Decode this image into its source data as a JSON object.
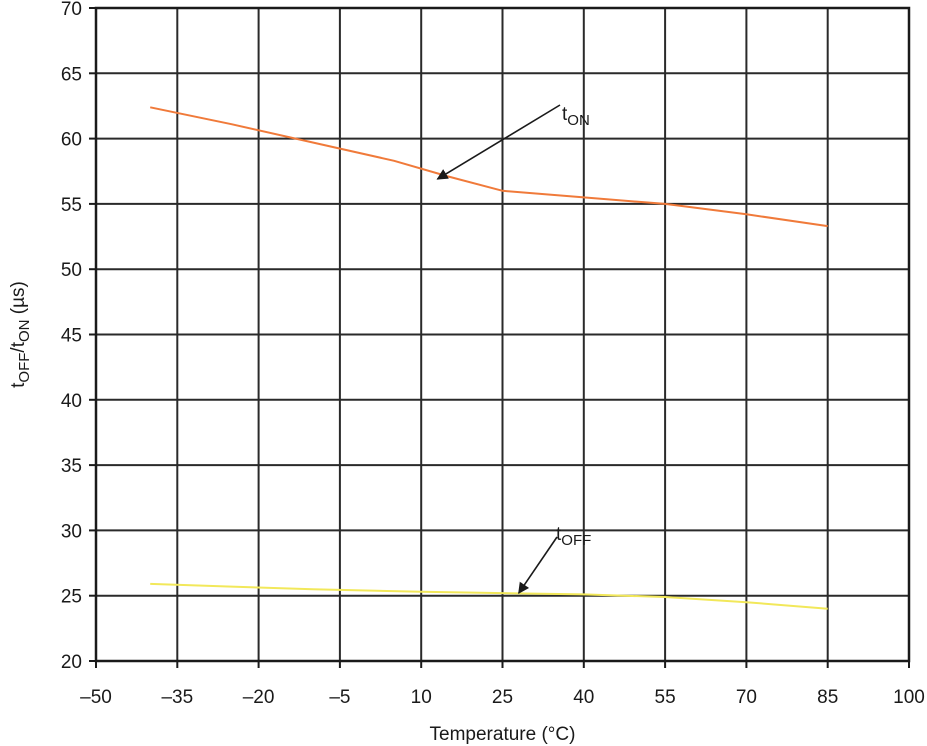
{
  "chart_data": {
    "type": "line",
    "title": "",
    "xlabel": "Temperature (°C)",
    "ylabel": {
      "main": "t",
      "sub1": "OFF",
      "mid": "/t",
      "sub2": "ON",
      "unit": " (µs)"
    },
    "xlim": [
      -50,
      100
    ],
    "ylim": [
      20,
      70
    ],
    "x_ticks": [
      -50,
      -35,
      -20,
      -5,
      10,
      25,
      40,
      55,
      70,
      85,
      100
    ],
    "x_tick_labels": [
      "–50",
      "–35",
      "–20",
      "–5",
      "10",
      "25",
      "40",
      "55",
      "70",
      "85",
      "100"
    ],
    "y_ticks": [
      20,
      25,
      30,
      35,
      40,
      45,
      50,
      55,
      60,
      65,
      70
    ],
    "y_tick_labels": [
      "20",
      "25",
      "30",
      "35",
      "40",
      "45",
      "50",
      "55",
      "60",
      "65",
      "70"
    ],
    "grid": true,
    "series": [
      {
        "name": "tON",
        "color": "#f07a3a",
        "x": [
          -40,
          -25,
          -10,
          5,
          15,
          25,
          40,
          55,
          70,
          85
        ],
        "y": [
          62.4,
          61.1,
          59.7,
          58.3,
          57.1,
          56.0,
          55.5,
          55.0,
          54.2,
          53.3
        ]
      },
      {
        "name": "tOFF",
        "color": "#f2e85a",
        "x": [
          -40,
          -25,
          -10,
          10,
          25,
          40,
          55,
          70,
          85
        ],
        "y": [
          25.9,
          25.7,
          25.5,
          25.3,
          25.2,
          25.1,
          24.9,
          24.5,
          24.0
        ]
      }
    ],
    "annotations": [
      {
        "main": "t",
        "sub": "ON",
        "points_to": {
          "x": 13,
          "y": 56.9
        }
      },
      {
        "main": "t",
        "sub": "OFF",
        "points_to": {
          "x": 28,
          "y": 25.2
        }
      }
    ]
  }
}
